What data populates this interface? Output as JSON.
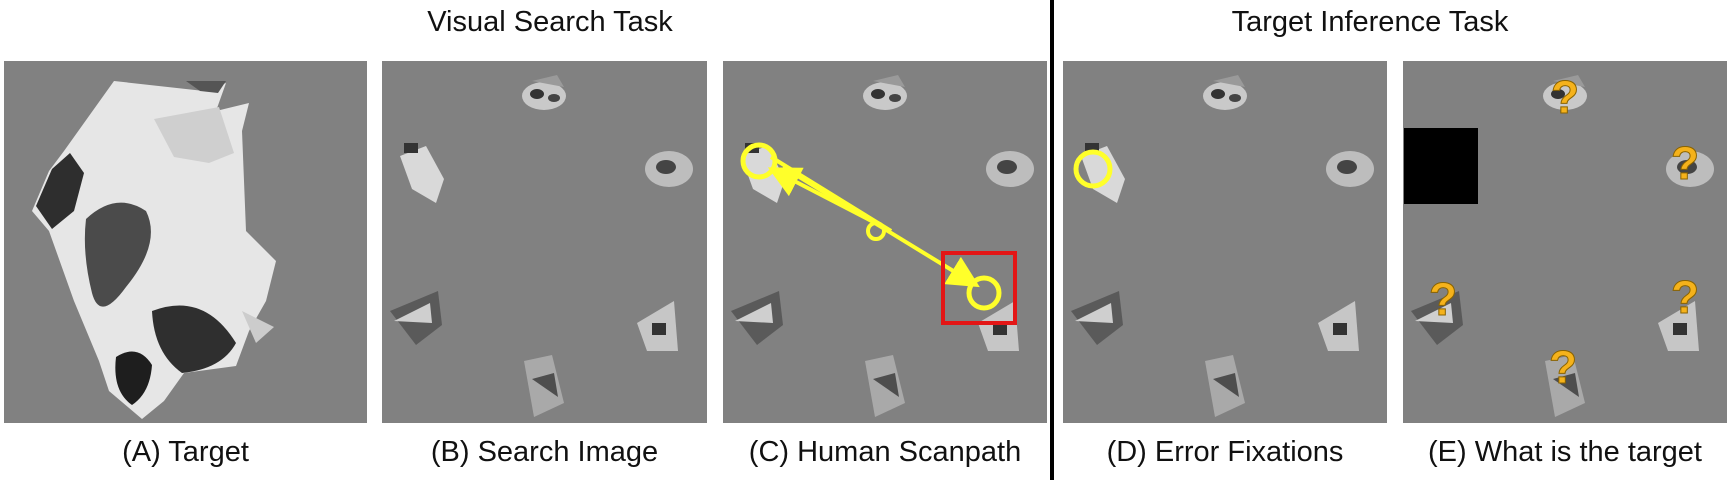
{
  "section_titles": {
    "left": "Visual Search Task",
    "right": "Target Inference Task"
  },
  "captions": {
    "a": "(A) Target",
    "b": "(B) Search Image",
    "c": "(C) Human Scanpath",
    "d": "(D) Error Fixations",
    "e": "(E) What is the target"
  },
  "question_mark": "?",
  "colors": {
    "panel_background": "#818181",
    "fixation": "#ffff2a",
    "target_box": "#e31616",
    "question_mark": "#f5b21b",
    "mask": "#000000"
  }
}
